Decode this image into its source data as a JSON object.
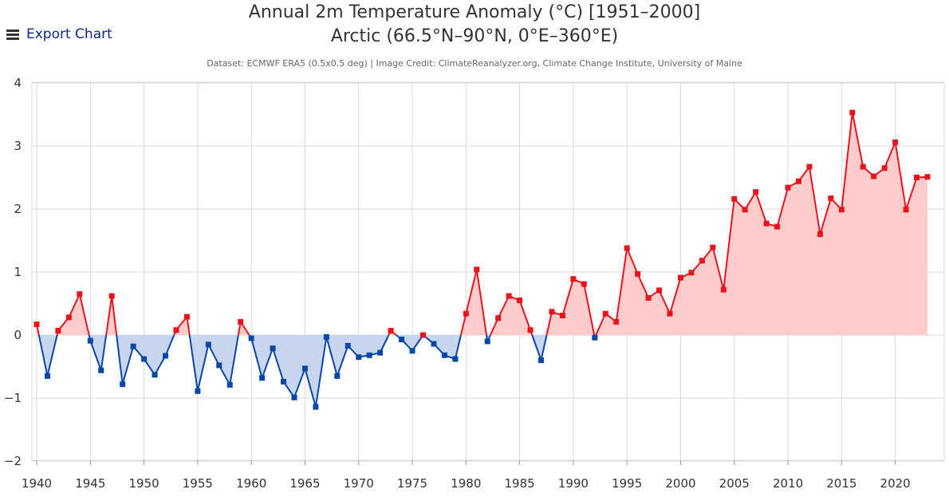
{
  "export": {
    "label": "Export Chart",
    "icon": "hamburger-menu-icon"
  },
  "chart_data": {
    "type": "area",
    "title": "Annual 2m Temperature Anomaly (°C) [1951–2000]",
    "subtitle": "Arctic (66.5°N–90°N, 0°E–360°E)",
    "credit": "Dataset: ECMWF ERA5 (0.5x0.5 deg) | Image Credit: ClimateReanalyzer.org, Climate Change Institute, University of Maine",
    "xlabel": "",
    "ylabel": "",
    "xlim": [
      1940,
      2023
    ],
    "ylim": [
      -2,
      4
    ],
    "grid": true,
    "colors": {
      "positive_line": "#e8141c",
      "positive_fill": "#ffcccc",
      "negative_line": "#0a46a6",
      "negative_fill": "#c8d5ef",
      "grid": "#d9d9d9"
    },
    "x_ticks": [
      1940,
      1945,
      1950,
      1955,
      1960,
      1965,
      1970,
      1975,
      1980,
      1985,
      1990,
      1995,
      2000,
      2005,
      2010,
      2015,
      2020
    ],
    "y_ticks": [
      -2,
      -1,
      0,
      1,
      2,
      3,
      4
    ],
    "x_tick_labels": [
      "1940",
      "1945",
      "1950",
      "1955",
      "1960",
      "1965",
      "1970",
      "1975",
      "1980",
      "1985",
      "1990",
      "1995",
      "2000",
      "2005",
      "2010",
      "2015",
      "2020"
    ],
    "y_tick_labels": [
      "−2",
      "−1",
      "0",
      "1",
      "2",
      "3",
      "4"
    ],
    "x": [
      1940,
      1941,
      1942,
      1943,
      1944,
      1945,
      1946,
      1947,
      1948,
      1949,
      1950,
      1951,
      1952,
      1953,
      1954,
      1955,
      1956,
      1957,
      1958,
      1959,
      1960,
      1961,
      1962,
      1963,
      1964,
      1965,
      1966,
      1967,
      1968,
      1969,
      1970,
      1971,
      1972,
      1973,
      1974,
      1975,
      1976,
      1977,
      1978,
      1979,
      1980,
      1981,
      1982,
      1983,
      1984,
      1985,
      1986,
      1987,
      1988,
      1989,
      1990,
      1991,
      1992,
      1993,
      1994,
      1995,
      1996,
      1997,
      1998,
      1999,
      2000,
      2001,
      2002,
      2003,
      2004,
      2005,
      2006,
      2007,
      2008,
      2009,
      2010,
      2011,
      2012,
      2013,
      2014,
      2015,
      2016,
      2017,
      2018,
      2019,
      2020,
      2021,
      2022,
      2023
    ],
    "values": [
      0.17,
      -0.65,
      0.07,
      0.28,
      0.65,
      -0.09,
      -0.56,
      0.62,
      -0.78,
      -0.18,
      -0.38,
      -0.63,
      -0.33,
      0.08,
      0.29,
      -0.89,
      -0.15,
      -0.48,
      -0.79,
      0.21,
      -0.05,
      -0.68,
      -0.21,
      -0.74,
      -0.99,
      -0.53,
      -1.14,
      -0.03,
      -0.65,
      -0.17,
      -0.35,
      -0.32,
      -0.28,
      0.07,
      -0.07,
      -0.25,
      0.0,
      -0.14,
      -0.32,
      -0.38,
      0.34,
      1.04,
      -0.1,
      0.27,
      0.62,
      0.55,
      0.08,
      -0.4,
      0.37,
      0.31,
      0.89,
      0.81,
      -0.04,
      0.34,
      0.21,
      1.38,
      0.97,
      0.59,
      0.71,
      0.34,
      0.91,
      0.99,
      1.18,
      1.39,
      0.72,
      2.16,
      1.99,
      2.27,
      1.77,
      1.72,
      2.34,
      2.44,
      2.67,
      1.6,
      2.17,
      1.99,
      3.53,
      2.67,
      2.52,
      2.65,
      3.06,
      1.99,
      2.5,
      2.51
    ]
  }
}
